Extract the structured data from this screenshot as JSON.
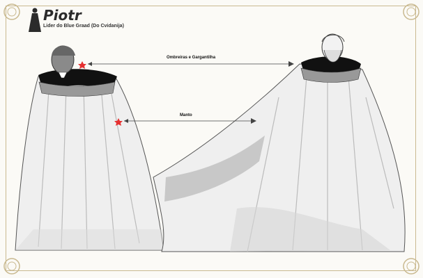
{
  "character": {
    "name": "Piotr",
    "subtitle": "Lider do Blue Graad (Do Cvidanija)"
  },
  "callouts": {
    "shoulders": "Ombreiras e Gargantilha",
    "mantle": "Manto"
  },
  "colors": {
    "ink": "#2b2b2b",
    "marker": "#e53030",
    "frame": "#c9b98f",
    "cloak": "#efefef",
    "cloak_shade": "#c8c8c8",
    "collar": "#111111"
  }
}
